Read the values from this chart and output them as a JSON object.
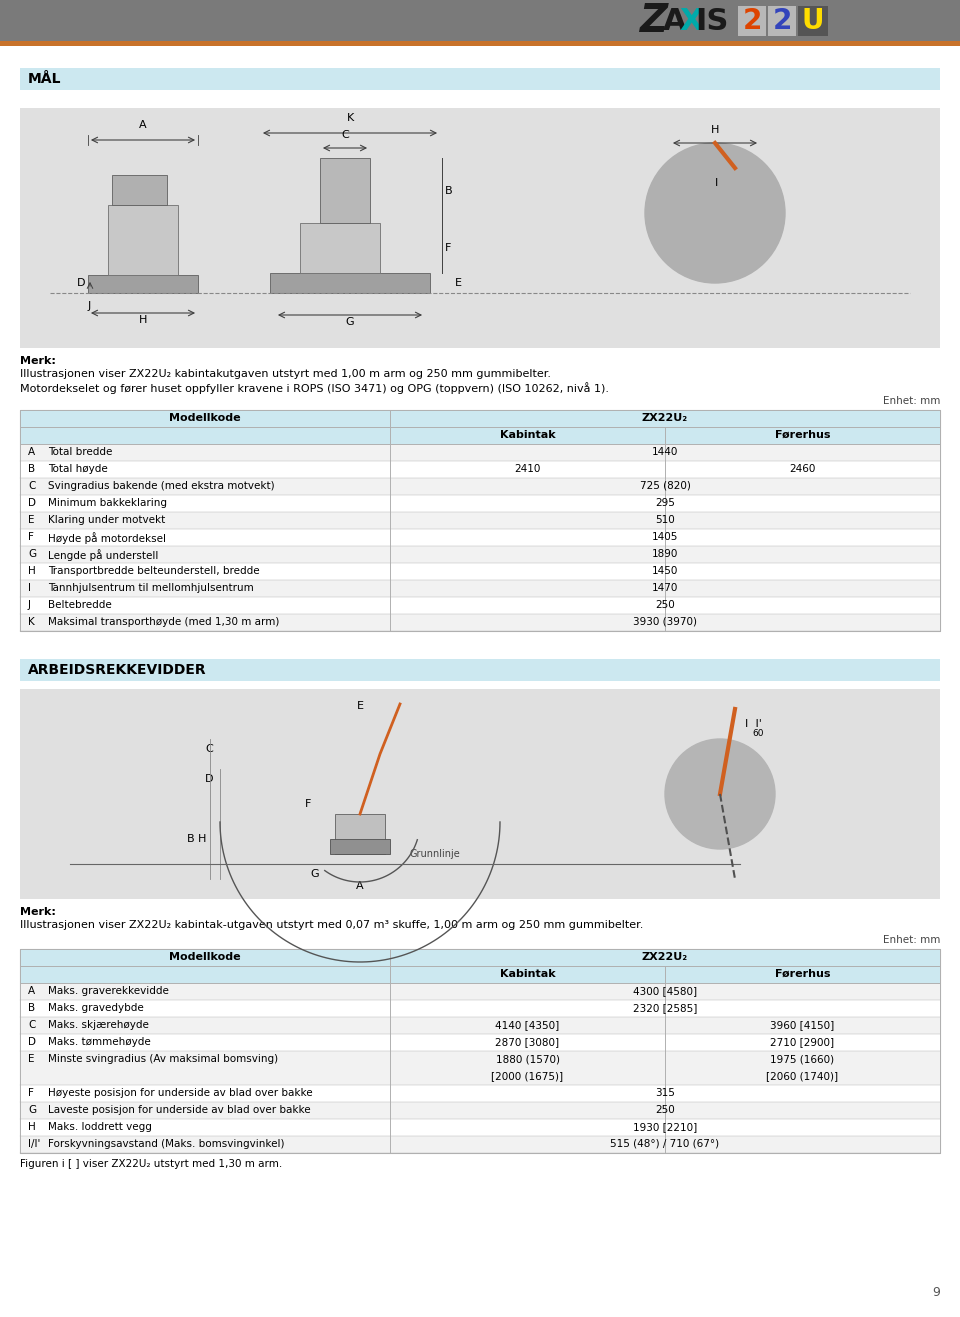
{
  "page_bg": "#ffffff",
  "header_bg": "#7a7a7a",
  "header_orange_line_color": "#c8722a",
  "section_header_bg": "#cce8f0",
  "table_header_bg": "#cce8f0",
  "table_row_alt": "#f2f2f2",
  "table_row_white": "#ffffff",
  "table_border_color": "#b0b0b0",
  "diagram_bg": "#e0e0e0",
  "section1_title": "MÅL",
  "section1_note1": "Merk:",
  "section1_note2": "Illustrasjonen viser ZX22U₂ kabintakutgaven utstyrt med 1,00 m arm og 250 mm gummibelter.",
  "section1_note3": "Motordekselet og fører huset oppfyller kravene i ROPS (ISO 3471) og OPG (toppvern) (ISO 10262, nivå 1).",
  "unit_label": "Enhet: mm",
  "table1_col1": "Modellkode",
  "table1_col2": "ZX22U₂",
  "table1_col2a": "Kabintak",
  "table1_col2b": "Førerhus",
  "table1_rows": [
    {
      "letter": "A",
      "desc": "Total bredde",
      "kabintak": "1440",
      "forerhus": ""
    },
    {
      "letter": "B",
      "desc": "Total høyde",
      "kabintak": "2410",
      "forerhus": "2460"
    },
    {
      "letter": "C",
      "desc": "Svingradius bakende (med ekstra motvekt)",
      "kabintak": "725 (820)",
      "forerhus": ""
    },
    {
      "letter": "D",
      "desc": "Minimum bakkeklaring",
      "kabintak": "295",
      "forerhus": ""
    },
    {
      "letter": "E",
      "desc": "Klaring under motvekt",
      "kabintak": "510",
      "forerhus": ""
    },
    {
      "letter": "F",
      "desc": "Høyde på motordeksel",
      "kabintak": "1405",
      "forerhus": ""
    },
    {
      "letter": "G",
      "desc": "Lengde på understell",
      "kabintak": "1890",
      "forerhus": ""
    },
    {
      "letter": "H",
      "desc": "Transportbredde belteunderstell, bredde",
      "kabintak": "1450",
      "forerhus": ""
    },
    {
      "letter": "I",
      "desc": "Tannhjulsentrum til mellomhjulsentrum",
      "kabintak": "1470",
      "forerhus": ""
    },
    {
      "letter": "J",
      "desc": "Beltebredde",
      "kabintak": "250",
      "forerhus": ""
    },
    {
      "letter": "K",
      "desc": "Maksimal transporthøyde (med 1,30 m arm)",
      "kabintak": "3930 (3970)",
      "forerhus": ""
    }
  ],
  "section2_title": "ARBEIDSREKKEVIDDER",
  "section2_note1": "Merk:",
  "section2_note2": "Illustrasjonen viser ZX22U₂ kabintak-utgaven utstyrt med 0,07 m³ skuffe, 1,00 m arm og 250 mm gummibelter.",
  "table2_col1": "Modellkode",
  "table2_col2": "ZX22U₂",
  "table2_col2a": "Kabintak",
  "table2_col2b": "Førerhus",
  "table2_rows": [
    {
      "letter": "A",
      "desc": "Maks. graverekkevidde",
      "kabintak": "4300 [4580]",
      "forerhus": ""
    },
    {
      "letter": "B",
      "desc": "Maks. gravedybde",
      "kabintak": "2320 [2585]",
      "forerhus": ""
    },
    {
      "letter": "C",
      "desc": "Maks. skjærehøyde",
      "kabintak": "4140 [4350]",
      "forerhus": "3960 [4150]"
    },
    {
      "letter": "D",
      "desc": "Maks. tømmehøyde",
      "kabintak": "2870 [3080]",
      "forerhus": "2710 [2900]"
    },
    {
      "letter": "E",
      "desc": "Minste svingradius (Av maksimal bomsving)",
      "kabintak": "1880 (1570)\n[2000 (1675)]",
      "forerhus": "1975 (1660)\n[2060 (1740)]"
    },
    {
      "letter": "F",
      "desc": "Høyeste posisjon for underside av blad over bakke",
      "kabintak": "315",
      "forerhus": ""
    },
    {
      "letter": "G",
      "desc": "Laveste posisjon for underside av blad over bakke",
      "kabintak": "250",
      "forerhus": ""
    },
    {
      "letter": "H",
      "desc": "Maks. loddrett vegg",
      "kabintak": "1930 [2210]",
      "forerhus": ""
    },
    {
      "letter": "I/I'",
      "desc": "Forskyvningsavstand (Maks. bomsvingvinkel)",
      "kabintak": "515 (48°) / 710 (67°)",
      "forerhus": ""
    }
  ],
  "section2_footnote": "Figuren i [ ] viser ZX22U₂ utstyrt med 1,30 m arm.",
  "page_number": "9"
}
